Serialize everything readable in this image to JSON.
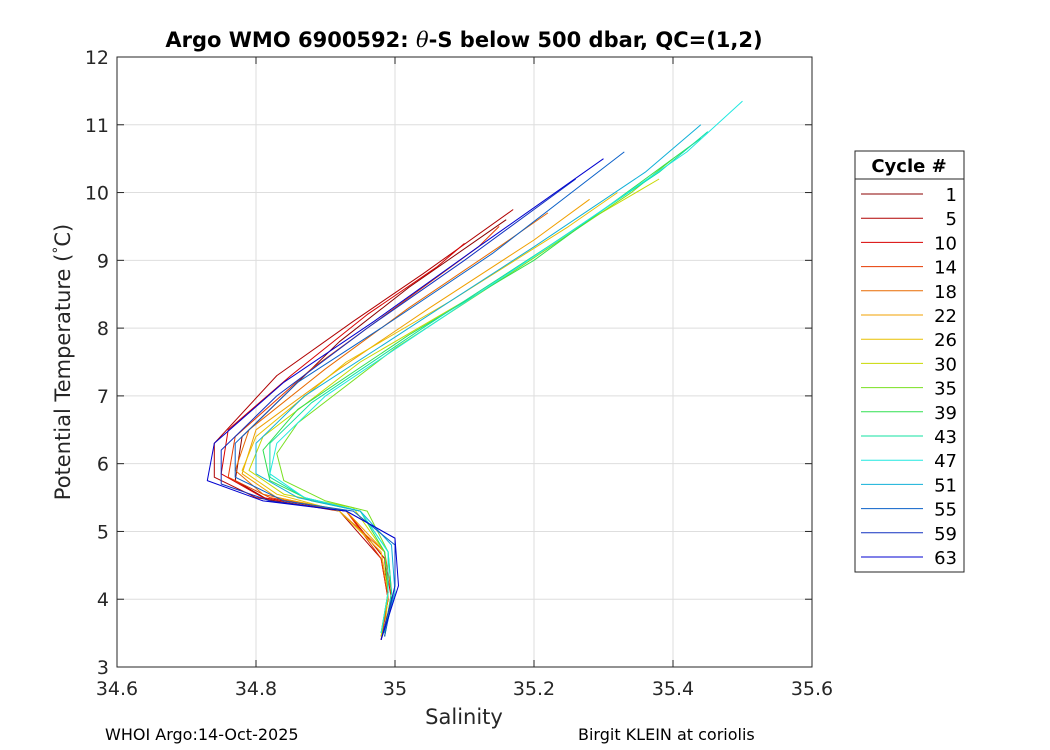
{
  "chart_data": {
    "type": "line",
    "title": "Argo WMO 6900592: θ-S below 500 dbar,  QC=(1,2)",
    "title_parts": {
      "prefix": "Argo WMO 6900592: ",
      "theta": "θ",
      "suffix": "-S below 500 dbar,  QC=(1,2)"
    },
    "xlabel": "Salinity",
    "ylabel_parts": {
      "main": "Potential Temperature (",
      "degree": "°",
      "unit": "C)"
    },
    "xlim": [
      34.6,
      35.6
    ],
    "ylim": [
      3,
      12
    ],
    "xticks": [
      34.6,
      34.8,
      35,
      35.2,
      35.4,
      35.6
    ],
    "xtick_labels": [
      "34.6",
      "34.8",
      "35",
      "35.2",
      "35.4",
      "35.6"
    ],
    "yticks": [
      3,
      4,
      5,
      6,
      7,
      8,
      9,
      10,
      11,
      12
    ],
    "ytick_labels": [
      "3",
      "4",
      "5",
      "6",
      "7",
      "8",
      "9",
      "10",
      "11",
      "12"
    ],
    "grid": true,
    "legend": {
      "title": "Cycle #",
      "placement": "right, outside plot",
      "entries": [
        "1",
        "5",
        "10",
        "14",
        "18",
        "22",
        "26",
        "30",
        "35",
        "39",
        "43",
        "47",
        "51",
        "55",
        "59",
        "63"
      ],
      "colors": [
        "#8b0000",
        "#b00000",
        "#d80000",
        "#e63a00",
        "#e86a00",
        "#f0a000",
        "#e8c000",
        "#c8d800",
        "#78e020",
        "#30e050",
        "#10e0a0",
        "#20e8e0",
        "#10b0d8",
        "#0a60c8",
        "#1030c0",
        "#0000d0"
      ]
    },
    "series": [
      {
        "name": "1",
        "color": "#8b0000",
        "points": [
          [
            34.98,
            3.4
          ],
          [
            34.99,
            4.0
          ],
          [
            34.985,
            4.6
          ],
          [
            34.93,
            5.3
          ],
          [
            34.82,
            5.45
          ],
          [
            34.77,
            5.75
          ],
          [
            34.78,
            6.4
          ],
          [
            34.92,
            7.8
          ],
          [
            35.02,
            8.6
          ],
          [
            35.16,
            9.6
          ]
        ]
      },
      {
        "name": "5",
        "color": "#b00000",
        "points": [
          [
            34.98,
            3.45
          ],
          [
            34.99,
            4.0
          ],
          [
            34.98,
            4.6
          ],
          [
            34.92,
            5.3
          ],
          [
            34.8,
            5.5
          ],
          [
            34.74,
            5.8
          ],
          [
            34.74,
            6.3
          ],
          [
            34.83,
            7.3
          ],
          [
            34.94,
            8.1
          ],
          [
            35.04,
            8.8
          ],
          [
            35.17,
            9.75
          ]
        ]
      },
      {
        "name": "10",
        "color": "#d80000",
        "points": [
          [
            34.985,
            3.45
          ],
          [
            34.995,
            4.0
          ],
          [
            34.985,
            4.6
          ],
          [
            34.93,
            5.3
          ],
          [
            34.81,
            5.5
          ],
          [
            34.75,
            5.85
          ],
          [
            34.76,
            6.5
          ],
          [
            34.85,
            7.3
          ],
          [
            34.96,
            8.2
          ],
          [
            35.06,
            8.9
          ],
          [
            35.1,
            9.25
          ]
        ]
      },
      {
        "name": "14",
        "color": "#e63a00",
        "points": [
          [
            34.98,
            3.4
          ],
          [
            34.99,
            4.0
          ],
          [
            34.98,
            4.6
          ],
          [
            34.93,
            5.3
          ],
          [
            34.82,
            5.5
          ],
          [
            34.76,
            5.8
          ],
          [
            34.77,
            6.4
          ],
          [
            34.88,
            7.4
          ],
          [
            35.0,
            8.3
          ],
          [
            35.12,
            9.2
          ],
          [
            35.15,
            9.5
          ]
        ]
      },
      {
        "name": "18",
        "color": "#e86a00",
        "points": [
          [
            34.985,
            3.5
          ],
          [
            34.995,
            4.1
          ],
          [
            34.985,
            4.7
          ],
          [
            34.92,
            5.3
          ],
          [
            34.81,
            5.55
          ],
          [
            34.77,
            5.9
          ],
          [
            34.79,
            6.5
          ],
          [
            34.9,
            7.4
          ],
          [
            35.02,
            8.3
          ],
          [
            35.15,
            9.2
          ],
          [
            35.22,
            9.7
          ]
        ]
      },
      {
        "name": "22",
        "color": "#f0a000",
        "points": [
          [
            34.98,
            3.5
          ],
          [
            34.99,
            4.1
          ],
          [
            34.985,
            4.7
          ],
          [
            34.93,
            5.3
          ],
          [
            34.83,
            5.5
          ],
          [
            34.78,
            5.85
          ],
          [
            34.8,
            6.5
          ],
          [
            34.92,
            7.4
          ],
          [
            35.05,
            8.3
          ],
          [
            35.2,
            9.3
          ],
          [
            35.28,
            9.9
          ]
        ]
      },
      {
        "name": "26",
        "color": "#e8c000",
        "points": [
          [
            34.985,
            3.5
          ],
          [
            34.99,
            4.1
          ],
          [
            34.98,
            4.7
          ],
          [
            34.92,
            5.3
          ],
          [
            34.83,
            5.55
          ],
          [
            34.78,
            5.9
          ],
          [
            34.8,
            6.4
          ],
          [
            34.93,
            7.5
          ],
          [
            35.08,
            8.4
          ],
          [
            35.25,
            9.5
          ],
          [
            35.32,
            10.0
          ]
        ]
      },
      {
        "name": "30",
        "color": "#c8d800",
        "points": [
          [
            34.98,
            3.45
          ],
          [
            34.99,
            4.1
          ],
          [
            34.985,
            4.7
          ],
          [
            34.94,
            5.35
          ],
          [
            34.84,
            5.55
          ],
          [
            34.79,
            5.9
          ],
          [
            34.81,
            6.4
          ],
          [
            34.95,
            7.5
          ],
          [
            35.1,
            8.4
          ],
          [
            35.28,
            9.6
          ],
          [
            35.38,
            10.2
          ]
        ]
      },
      {
        "name": "35",
        "color": "#78e020",
        "points": [
          [
            34.985,
            3.5
          ],
          [
            34.995,
            4.1
          ],
          [
            34.99,
            4.7
          ],
          [
            34.96,
            5.3
          ],
          [
            34.9,
            5.45
          ],
          [
            34.84,
            5.75
          ],
          [
            34.83,
            6.15
          ],
          [
            34.86,
            6.6
          ],
          [
            35.0,
            7.7
          ],
          [
            35.18,
            8.9
          ],
          [
            35.34,
            10.0
          ],
          [
            35.4,
            10.5
          ]
        ]
      },
      {
        "name": "39",
        "color": "#30e050",
        "points": [
          [
            34.98,
            3.5
          ],
          [
            34.99,
            4.1
          ],
          [
            34.985,
            4.7
          ],
          [
            34.95,
            5.3
          ],
          [
            34.88,
            5.45
          ],
          [
            34.82,
            5.75
          ],
          [
            34.81,
            6.2
          ],
          [
            34.86,
            6.8
          ],
          [
            35.02,
            7.9
          ],
          [
            35.2,
            9.0
          ],
          [
            35.36,
            10.2
          ],
          [
            35.44,
            10.8
          ]
        ]
      },
      {
        "name": "43",
        "color": "#10e0a0",
        "points": [
          [
            34.985,
            3.45
          ],
          [
            34.995,
            4.1
          ],
          [
            34.99,
            4.7
          ],
          [
            34.95,
            5.3
          ],
          [
            34.87,
            5.5
          ],
          [
            34.82,
            5.8
          ],
          [
            34.82,
            6.3
          ],
          [
            34.88,
            6.9
          ],
          [
            35.04,
            8.0
          ],
          [
            35.22,
            9.2
          ],
          [
            35.38,
            10.3
          ],
          [
            35.45,
            10.9
          ]
        ]
      },
      {
        "name": "47",
        "color": "#20e8e0",
        "points": [
          [
            34.98,
            3.5
          ],
          [
            34.99,
            4.1
          ],
          [
            34.99,
            4.7
          ],
          [
            34.95,
            5.3
          ],
          [
            34.87,
            5.5
          ],
          [
            34.82,
            5.85
          ],
          [
            34.83,
            6.3
          ],
          [
            34.9,
            7.0
          ],
          [
            35.06,
            8.1
          ],
          [
            35.25,
            9.4
          ],
          [
            35.42,
            10.6
          ],
          [
            35.5,
            11.35
          ]
        ]
      },
      {
        "name": "51",
        "color": "#10b0d8",
        "points": [
          [
            34.985,
            3.5
          ],
          [
            35.0,
            4.1
          ],
          [
            34.995,
            4.8
          ],
          [
            34.95,
            5.3
          ],
          [
            34.86,
            5.5
          ],
          [
            34.8,
            5.85
          ],
          [
            34.8,
            6.3
          ],
          [
            34.87,
            7.0
          ],
          [
            35.02,
            8.0
          ],
          [
            35.2,
            9.2
          ],
          [
            35.36,
            10.3
          ],
          [
            35.44,
            11.0
          ]
        ]
      },
      {
        "name": "55",
        "color": "#0a60c8",
        "points": [
          [
            34.985,
            3.45
          ],
          [
            35.0,
            4.2
          ],
          [
            35.0,
            4.8
          ],
          [
            34.94,
            5.3
          ],
          [
            34.84,
            5.45
          ],
          [
            34.77,
            5.8
          ],
          [
            34.77,
            6.3
          ],
          [
            34.86,
            7.2
          ],
          [
            34.98,
            8.0
          ],
          [
            35.14,
            9.1
          ],
          [
            35.33,
            10.6
          ]
        ]
      },
      {
        "name": "59",
        "color": "#1030c0",
        "points": [
          [
            34.98,
            3.4
          ],
          [
            35.0,
            4.2
          ],
          [
            35.0,
            4.9
          ],
          [
            34.93,
            5.3
          ],
          [
            34.82,
            5.45
          ],
          [
            34.75,
            5.7
          ],
          [
            34.75,
            6.2
          ],
          [
            34.83,
            7.0
          ],
          [
            34.96,
            8.0
          ],
          [
            35.1,
            9.0
          ],
          [
            35.26,
            10.2
          ]
        ]
      },
      {
        "name": "63",
        "color": "#0000d0",
        "points": [
          [
            34.98,
            3.4
          ],
          [
            35.005,
            4.2
          ],
          [
            35.0,
            4.9
          ],
          [
            34.93,
            5.3
          ],
          [
            34.81,
            5.45
          ],
          [
            34.73,
            5.75
          ],
          [
            34.74,
            6.3
          ],
          [
            34.84,
            7.2
          ],
          [
            34.97,
            8.1
          ],
          [
            35.12,
            9.2
          ],
          [
            35.3,
            10.5
          ]
        ]
      }
    ]
  },
  "footer": {
    "left": "WHOI Argo:14-Oct-2025",
    "right": "Birgit KLEIN at coriolis"
  }
}
